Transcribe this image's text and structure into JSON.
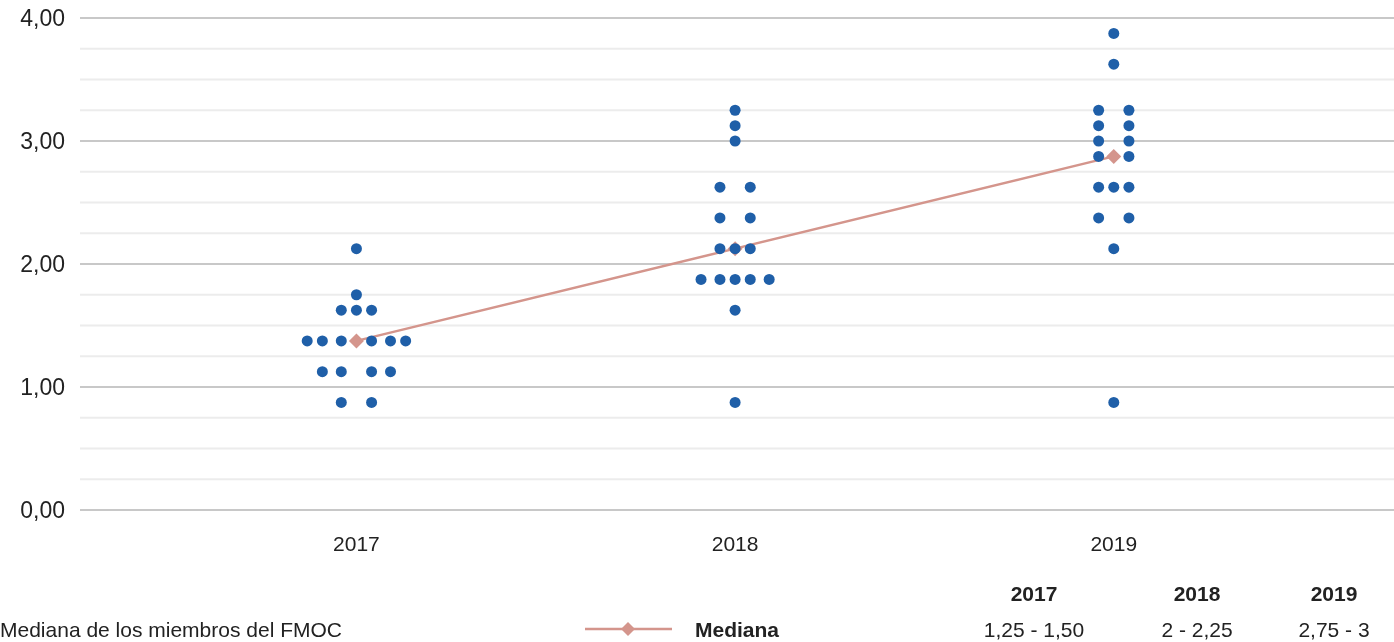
{
  "chart_data": {
    "type": "scatter",
    "xlim": [
      2016.27,
      2019.74
    ],
    "xticks": [
      2017,
      2018,
      2019
    ],
    "ylim": [
      0,
      4
    ],
    "yticks": [
      "0,00",
      {
        "value": 0.25,
        "label": null
      },
      {
        "value": 0.5,
        "label": null
      },
      {
        "value": 0.75,
        "label": null
      },
      {
        "value": 1,
        "label": "1,00"
      },
      {
        "value": 1.25,
        "label": null
      },
      {
        "value": 1.5,
        "label": null
      },
      {
        "value": 1.75,
        "label": null
      },
      {
        "value": 2,
        "label": "2,00"
      },
      {
        "value": 2.25,
        "label": null
      },
      {
        "value": 2.5,
        "label": null
      },
      {
        "value": 2.75,
        "label": null
      },
      {
        "value": 3,
        "label": "3,00"
      },
      {
        "value": 3.25,
        "label": null
      },
      {
        "value": 3.5,
        "label": null
      },
      {
        "value": 3.75,
        "label": null
      },
      {
        "value": 4,
        "label": "4,00"
      }
    ],
    "grid": "y",
    "legend": "bottom",
    "marker": "circle",
    "series": [
      {
        "type": "line",
        "name": "Mediana",
        "color": "#d4958c",
        "marker": "diamond",
        "x": [
          2017,
          2018,
          2019
        ],
        "values": [
          1.375,
          2.125,
          2.875
        ]
      },
      {
        "color": "#1f5fa8",
        "x": [
          2017,
          2017,
          2016.96,
          2017,
          2017.04,
          2016.87,
          2016.91,
          2016.96,
          2017.04,
          2017.09,
          2017.13,
          2016.91,
          2016.96,
          2017.04,
          2017.09,
          2016.96,
          2017.04,
          2018,
          2018,
          2018,
          2017.96,
          2018.04,
          2017.96,
          2018.04,
          2017.96,
          2018,
          2018.04,
          2017.91,
          2017.96,
          2018,
          2018.04,
          2018.09,
          2018,
          2018,
          2019,
          2019,
          2018.96,
          2019.04,
          2018.96,
          2019.04,
          2018.96,
          2019.04,
          2018.96,
          2019.04,
          2018.96,
          2019,
          2019.04,
          2018.96,
          2019.04,
          2019,
          2019
        ],
        "values": [
          2.125,
          1.75,
          1.625,
          1.625,
          1.625,
          1.375,
          1.375,
          1.375,
          1.375,
          1.375,
          1.375,
          1.125,
          1.125,
          1.125,
          1.125,
          0.875,
          0.875,
          3.25,
          3.125,
          3,
          2.625,
          2.625,
          2.375,
          2.375,
          2.125,
          2.125,
          2.125,
          1.875,
          1.875,
          1.875,
          1.875,
          1.875,
          1.625,
          0.875,
          3.875,
          3.625,
          3.25,
          3.25,
          3.125,
          3.125,
          3,
          3,
          2.875,
          2.875,
          2.625,
          2.625,
          2.625,
          2.375,
          2.375,
          2.125,
          0.875
        ]
      }
    ],
    "annotations": [
      "Mediana de los miembros del FMOC",
      "2017",
      "2018",
      "2019",
      "1,25 - 1,50",
      "2 - 2,25",
      "2,75 - 3"
    ]
  }
}
